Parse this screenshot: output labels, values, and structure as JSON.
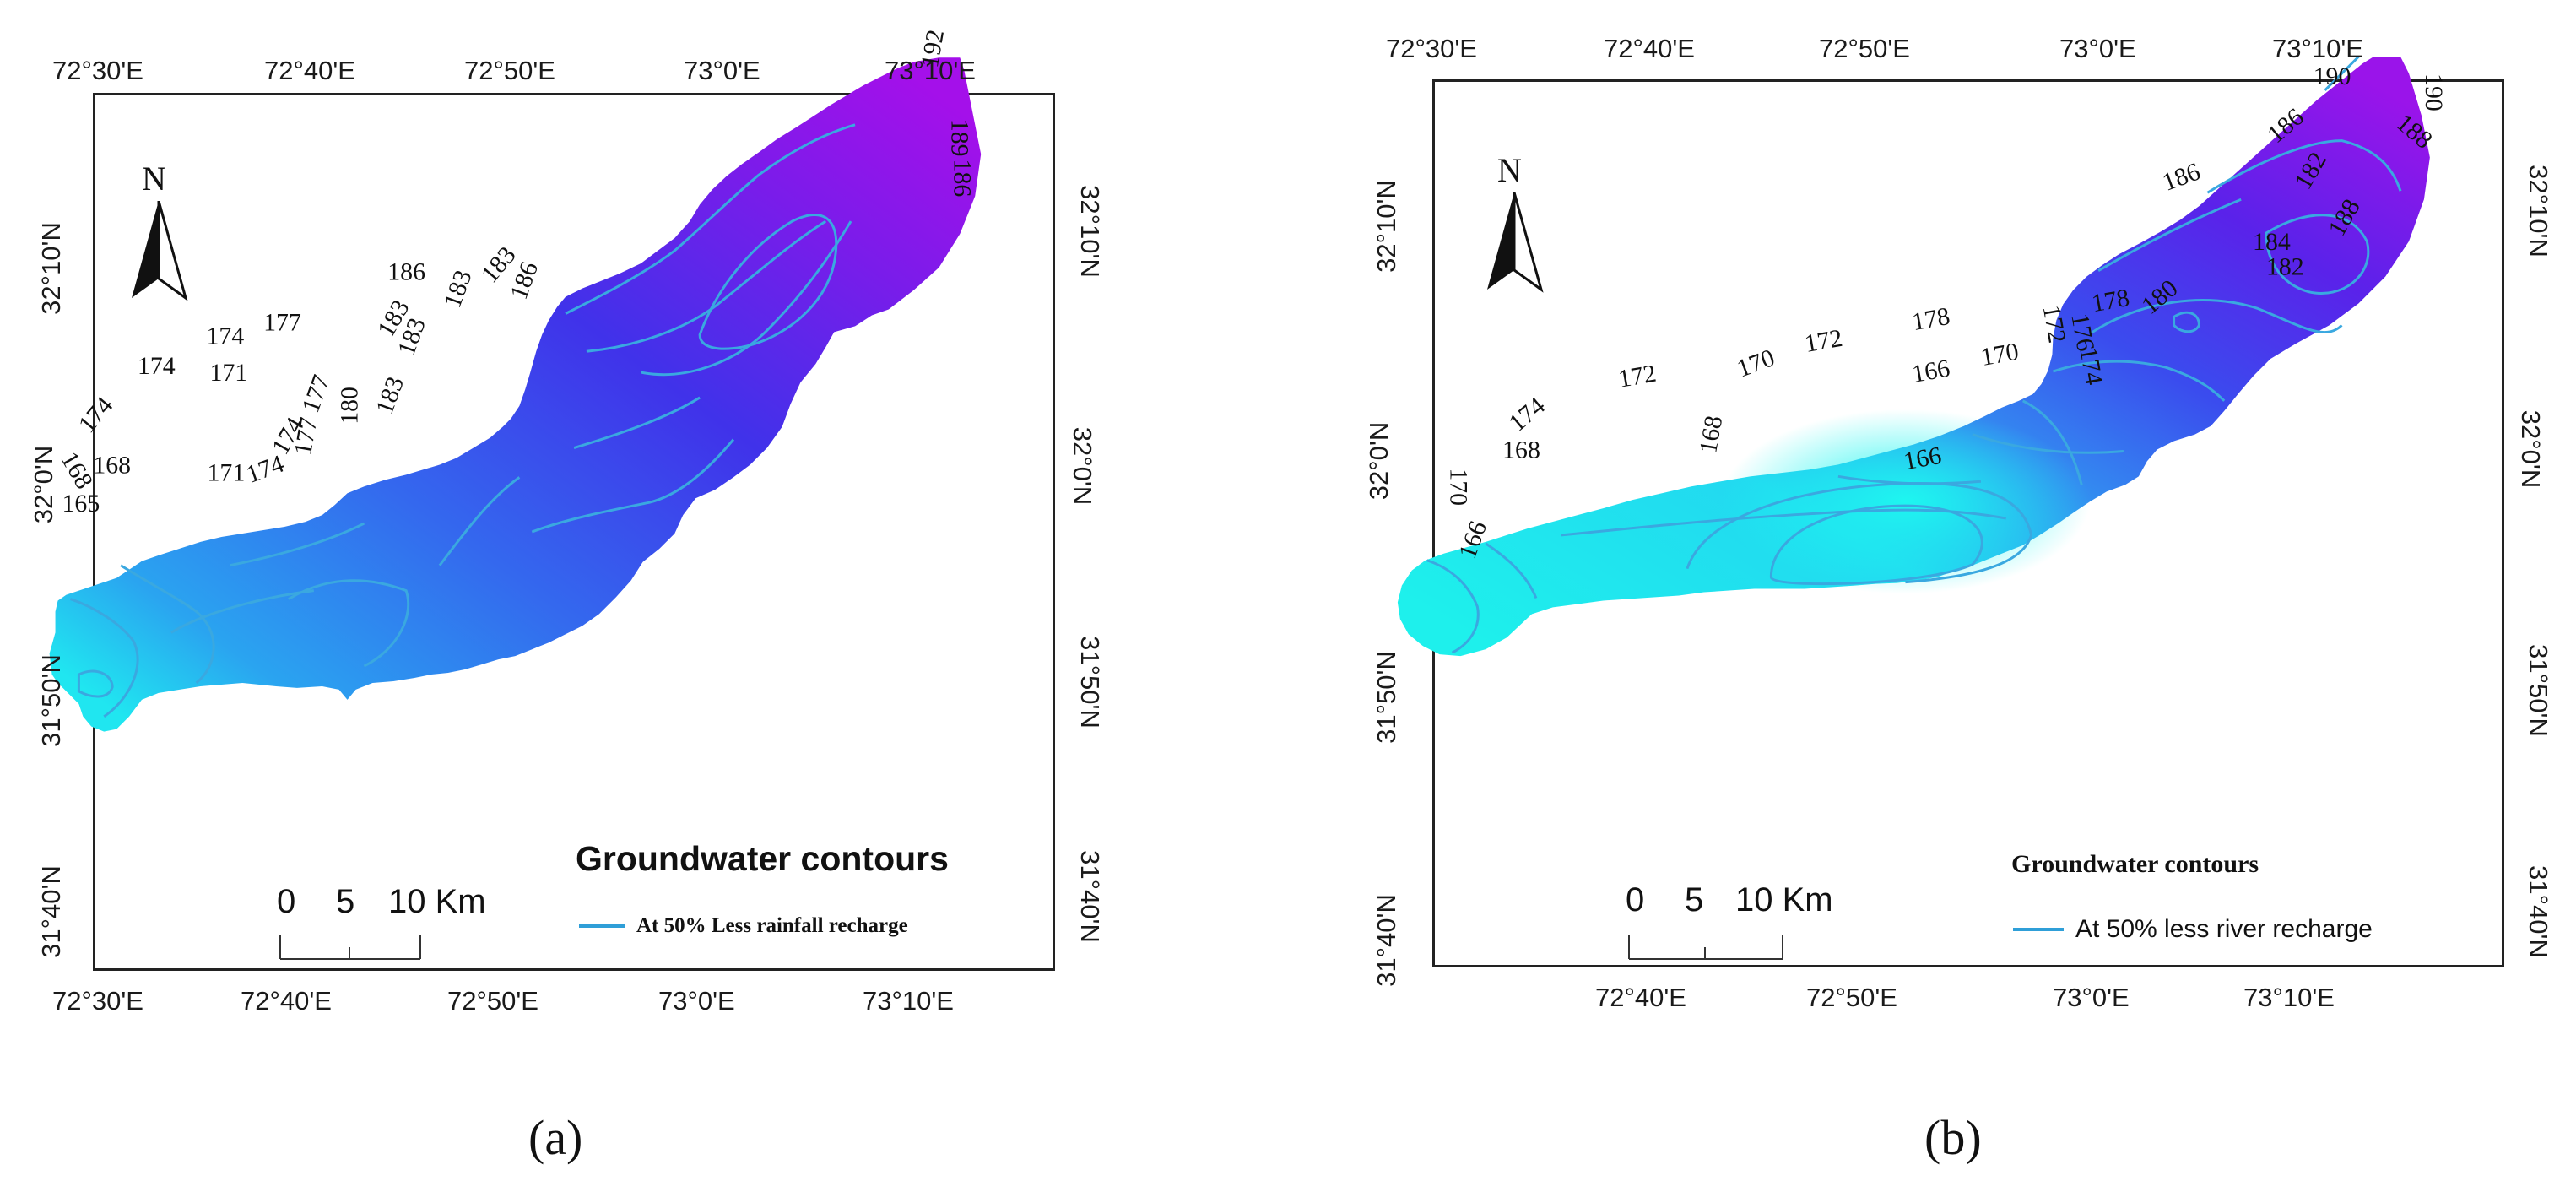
{
  "panels": [
    {
      "sub_label": "(a)",
      "legend_title": "Groundwater contours",
      "legend_entry": "At 50% Less rainfall recharge",
      "scale": {
        "l0": "0",
        "l1": "5",
        "l2": "10 Km"
      },
      "north": "N",
      "top_ticks": [
        "72°30'E",
        "72°40'E",
        "72°50'E",
        "73°0'E",
        "73°10'E"
      ],
      "bottom_ticks": [
        "72°30'E",
        "72°40'E",
        "72°50'E",
        "73°0'E",
        "73°10'E"
      ],
      "left_ticks": [
        "32°10'N",
        "32°0'N",
        "31°50'N",
        "31°40'N"
      ],
      "right_ticks": [
        "32°10'N",
        "32°0'N",
        "31°50'N",
        "31°40'N"
      ],
      "contour_labels": [
        "192",
        "189",
        "186",
        "186",
        "183",
        "183",
        "186",
        "183",
        "183",
        "180",
        "183",
        "177",
        "174",
        "171",
        "174",
        "177",
        "177",
        "174",
        "174",
        "171",
        "174",
        "168",
        "168",
        "165"
      ]
    },
    {
      "sub_label": "(b)",
      "legend_title": "Groundwater contours",
      "legend_entry": "At 50% less river recharge",
      "scale": {
        "l0": "0",
        "l1": "5",
        "l2": "10 Km"
      },
      "north": "N",
      "top_ticks": [
        "72°30'E",
        "72°40'E",
        "72°50'E",
        "73°0'E",
        "73°10'E"
      ],
      "bottom_ticks": [
        "72°40'E",
        "72°50'E",
        "73°0'E",
        "73°10'E"
      ],
      "left_ticks": [
        "32°10'N",
        "32°0'N",
        "31°50'N",
        "31°40'N"
      ],
      "right_ticks": [
        "32°10'N",
        "32°0'N",
        "31°50'N",
        "31°40'N"
      ],
      "contour_labels": [
        "190",
        "190",
        "188",
        "186",
        "186",
        "182",
        "188",
        "184",
        "182",
        "180",
        "178",
        "178",
        "176",
        "172",
        "174",
        "170",
        "172",
        "170",
        "166",
        "172",
        "168",
        "174",
        "168",
        "170",
        "166",
        "166"
      ]
    }
  ],
  "colors": {
    "high": "#9b14ea",
    "mid": "#3a46ec",
    "low": "#1fe3ef",
    "contour": "#3aa8e0"
  }
}
